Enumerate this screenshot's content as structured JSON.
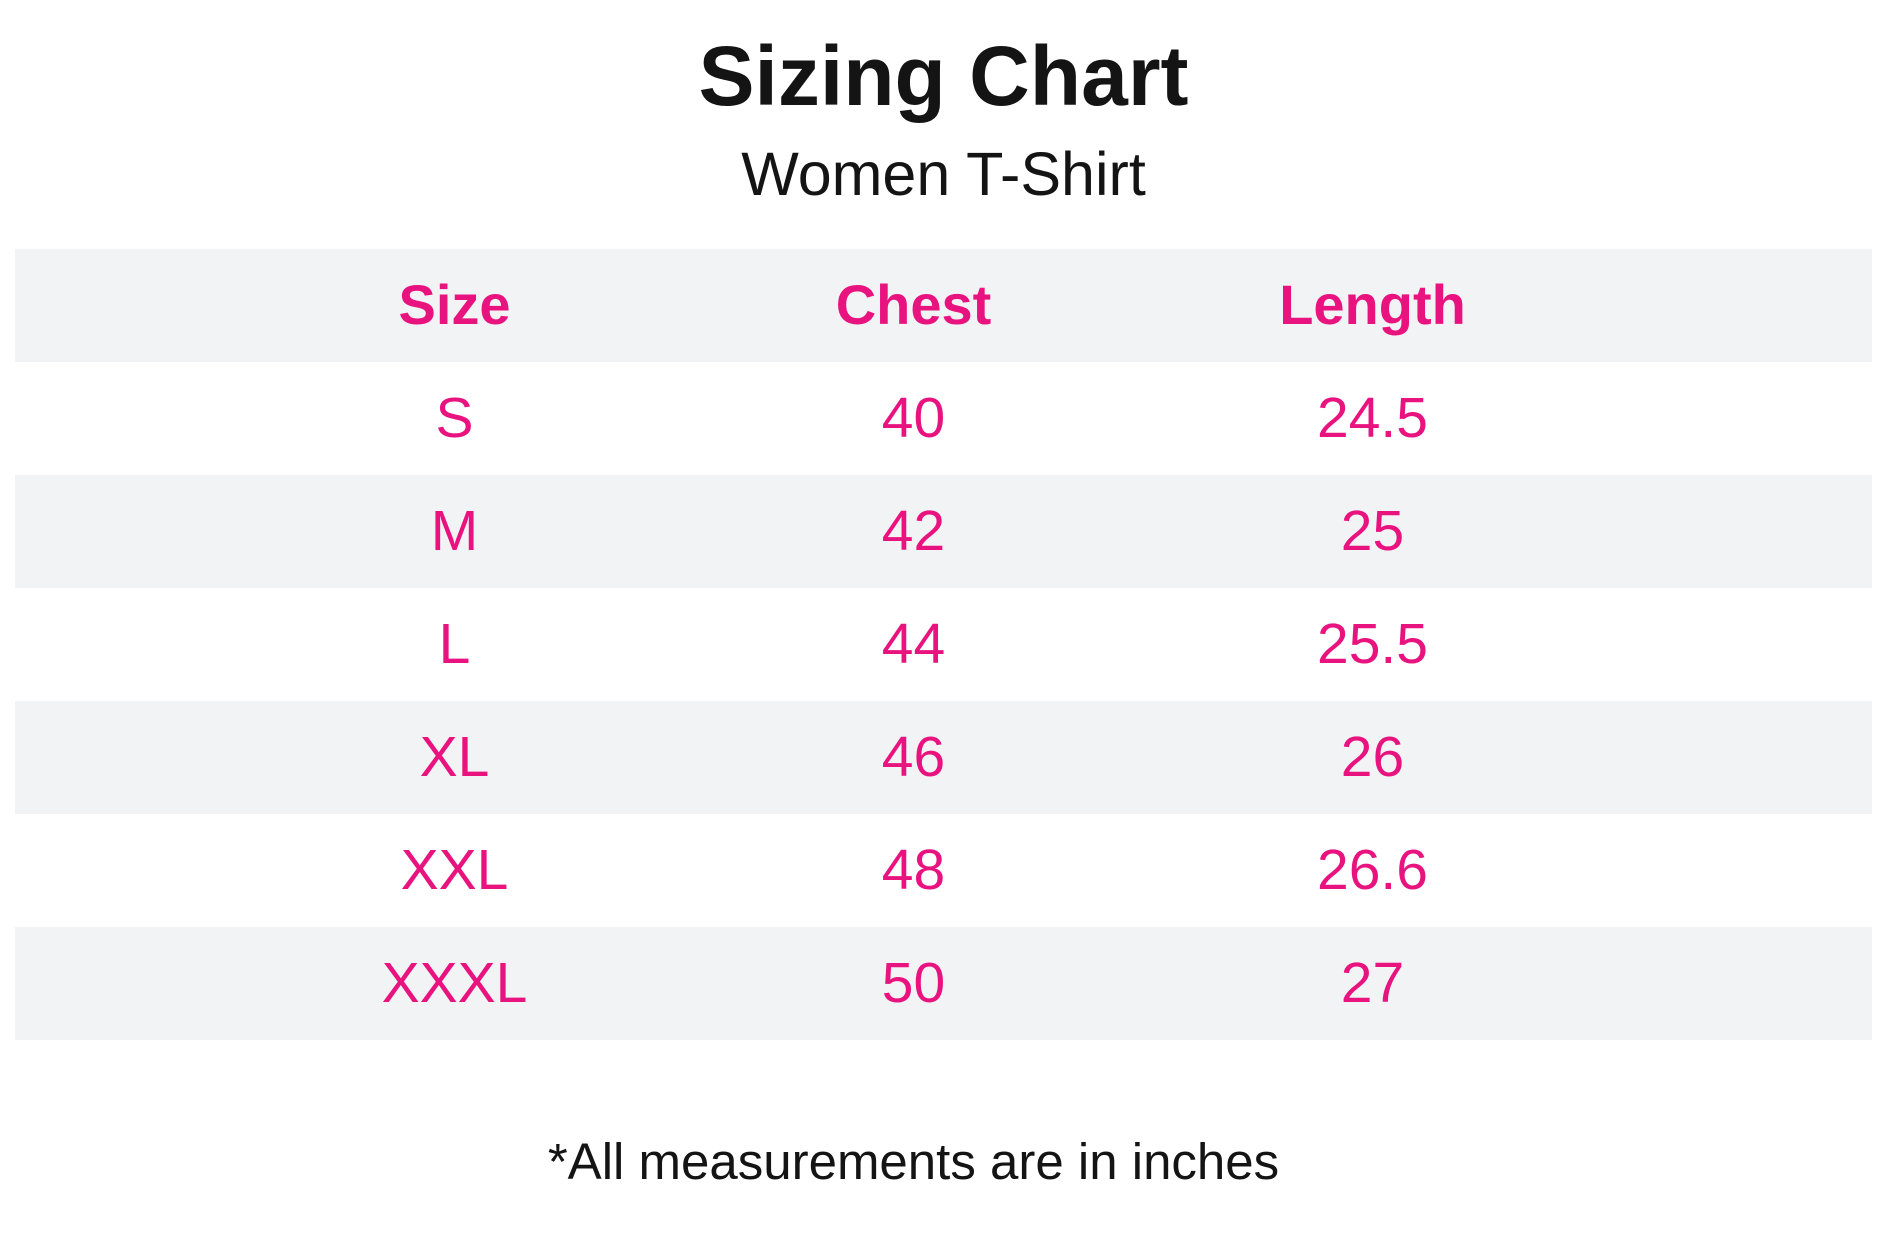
{
  "page": {
    "title": "Sizing Chart",
    "subtitle": "Women T-Shirt",
    "footnote": "*All measurements are in inches"
  },
  "colors": {
    "accent_pink": "#E9137F",
    "row_stripe_gray": "#F2F3F4",
    "text_black": "#141414",
    "background": "#FFFFFF"
  },
  "table": {
    "headers": {
      "size": "Size",
      "chest": "Chest",
      "length": "Length"
    },
    "rows": [
      {
        "size": "S",
        "chest": "40",
        "length": "24.5"
      },
      {
        "size": "M",
        "chest": "42",
        "length": "25"
      },
      {
        "size": "L",
        "chest": "44",
        "length": "25.5"
      },
      {
        "size": "XL",
        "chest": "46",
        "length": "26"
      },
      {
        "size": "XXL",
        "chest": "48",
        "length": "26.6"
      },
      {
        "size": "XXXL",
        "chest": "50",
        "length": "27"
      }
    ]
  },
  "chart_data": {
    "type": "table",
    "title": "Sizing Chart",
    "subtitle": "Women T-Shirt",
    "columns": [
      "Size",
      "Chest",
      "Length"
    ],
    "rows": [
      [
        "S",
        40,
        24.5
      ],
      [
        "M",
        42,
        25
      ],
      [
        "L",
        44,
        25.5
      ],
      [
        "XL",
        46,
        26
      ],
      [
        "XXL",
        48,
        26.6
      ],
      [
        "XXXL",
        50,
        27
      ]
    ],
    "units": "inches",
    "footnote": "*All measurements are in inches",
    "layout_hints": {
      "striped_rows": true,
      "stripe_color": "#F2F3F4",
      "text_color": "#E9137F",
      "header_bold": true,
      "first_striped_row": "header"
    }
  }
}
